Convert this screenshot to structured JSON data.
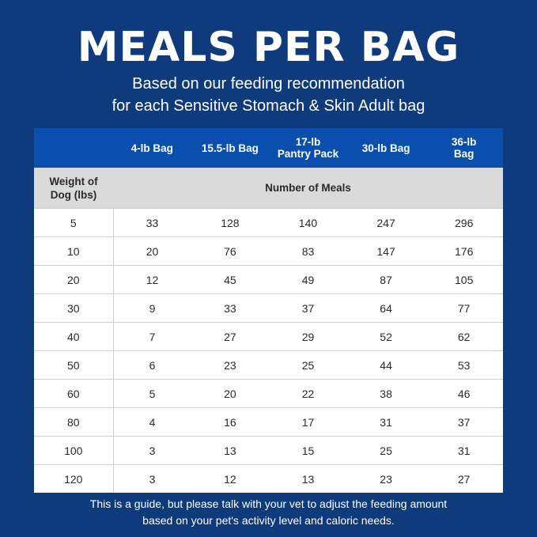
{
  "header": {
    "title": "MEALS PER BAG",
    "subtitle": [
      "Based on our feeding recommendation",
      "for each Sensitive Stomach & Skin Adult bag"
    ]
  },
  "table": {
    "columns": [
      "4-lb Bag",
      "15.5-lb Bag",
      "17-lb\nPantry Pack",
      "30-lb Bag",
      "36-lb\nBag"
    ],
    "row_header_label": "Weight of\nDog (lbs)",
    "group_label": "Number of Meals",
    "rows": [
      [
        5,
        33,
        128,
        140,
        247,
        296
      ],
      [
        10,
        20,
        76,
        83,
        147,
        176
      ],
      [
        20,
        12,
        45,
        49,
        87,
        105
      ],
      [
        30,
        9,
        33,
        37,
        64,
        77
      ],
      [
        40,
        7,
        27,
        29,
        52,
        62
      ],
      [
        50,
        6,
        23,
        25,
        44,
        53
      ],
      [
        60,
        5,
        20,
        22,
        38,
        46
      ],
      [
        80,
        4,
        16,
        17,
        31,
        37
      ],
      [
        100,
        3,
        13,
        15,
        25,
        31
      ],
      [
        120,
        3,
        12,
        13,
        23,
        27
      ]
    ]
  },
  "footer": [
    "This is a guide, but please talk with your vet to adjust the feeding amount",
    "based on your pet's activity level and caloric needs."
  ]
}
